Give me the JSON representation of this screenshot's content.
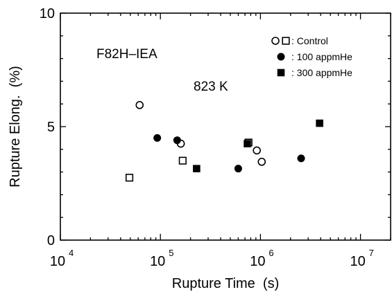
{
  "chart_data": {
    "type": "scatter",
    "title": "",
    "xlabel": "Rupture Time  (s)",
    "ylabel": "Rupture Elong.  (%)",
    "xscale": "log",
    "xlim": [
      10000,
      20000000
    ],
    "ylim": [
      0,
      10
    ],
    "x_ticks": [
      {
        "base": "10",
        "exp": "4"
      },
      {
        "base": "10",
        "exp": "5"
      },
      {
        "base": "10",
        "exp": "6"
      },
      {
        "base": "10",
        "exp": "7"
      }
    ],
    "y_ticks": [
      "0",
      "5",
      "10"
    ],
    "grid": false,
    "annotations": [
      "F82H–IEA",
      "823 K"
    ],
    "legend_position": "top-right",
    "legend": [
      {
        "label": ": Control",
        "markers": [
          "open-circle",
          "open-square"
        ]
      },
      {
        "label": ": 100 appmHe",
        "markers": [
          "filled-circle"
        ]
      },
      {
        "label": ": 300 appmHe",
        "markers": [
          "filled-square"
        ]
      }
    ],
    "series": [
      {
        "name": "Control",
        "points": [
          {
            "x": 62000,
            "y": 5.95,
            "marker": "open-circle"
          },
          {
            "x": 160000,
            "y": 4.25,
            "marker": "open-circle"
          },
          {
            "x": 920000,
            "y": 3.95,
            "marker": "open-circle"
          },
          {
            "x": 1030000,
            "y": 3.45,
            "marker": "open-circle"
          },
          {
            "x": 49000,
            "y": 2.75,
            "marker": "open-square"
          },
          {
            "x": 167000,
            "y": 3.5,
            "marker": "open-square"
          },
          {
            "x": 760000,
            "y": 4.3,
            "marker": "open-square"
          }
        ]
      },
      {
        "name": "100 appmHe",
        "points": [
          {
            "x": 93000,
            "y": 4.5,
            "marker": "filled-circle"
          },
          {
            "x": 147000,
            "y": 4.4,
            "marker": "filled-circle"
          },
          {
            "x": 600000,
            "y": 3.15,
            "marker": "filled-circle"
          },
          {
            "x": 2550000,
            "y": 3.6,
            "marker": "filled-circle"
          }
        ]
      },
      {
        "name": "300 appmHe",
        "points": [
          {
            "x": 230000,
            "y": 3.15,
            "marker": "filled-square"
          },
          {
            "x": 740000,
            "y": 4.25,
            "marker": "filled-square"
          },
          {
            "x": 3900000,
            "y": 5.15,
            "marker": "filled-square"
          }
        ]
      }
    ]
  }
}
